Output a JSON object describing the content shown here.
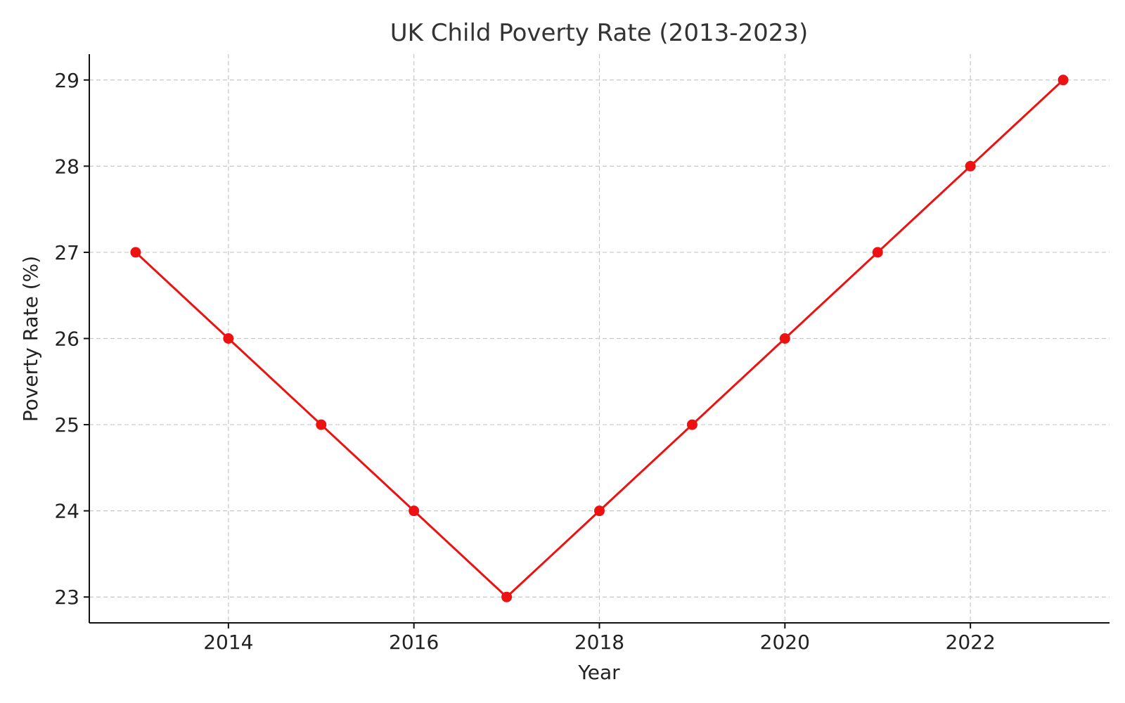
{
  "chart_data": {
    "type": "line",
    "title": "UK Child Poverty Rate (2013-2023)",
    "xlabel": "Year",
    "ylabel": "Poverty Rate (%)",
    "x": [
      2013,
      2014,
      2015,
      2016,
      2017,
      2018,
      2019,
      2020,
      2021,
      2022,
      2023
    ],
    "series": [
      {
        "values": [
          27,
          26,
          25,
          24,
          23,
          24,
          25,
          26,
          27,
          28,
          29
        ],
        "color": "#ee1111",
        "marker": "circle"
      }
    ],
    "x_ticks": [
      "2014",
      "2016",
      "2018",
      "2020",
      "2022"
    ],
    "y_ticks": [
      "23",
      "24",
      "25",
      "26",
      "27",
      "28",
      "29"
    ],
    "xlim": [
      2012.5,
      2023.5
    ],
    "ylim": [
      22.7,
      29.3
    ],
    "grid": true,
    "legend": "none"
  }
}
